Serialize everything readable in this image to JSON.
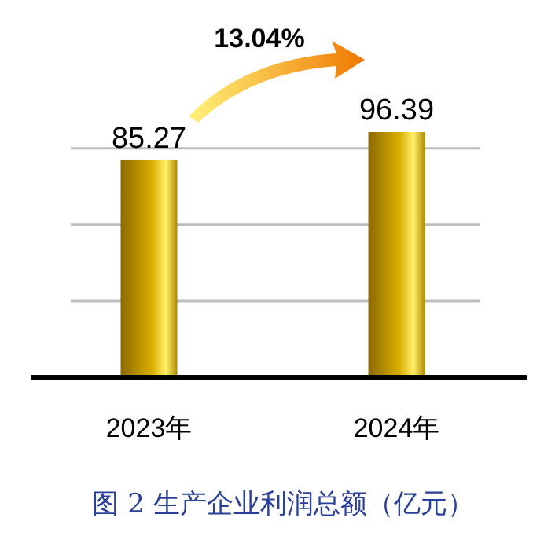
{
  "chart_data": {
    "type": "bar",
    "title": "图 2  生产企业利润总额（亿元）",
    "categories": [
      "2023年",
      "2024年"
    ],
    "values": [
      85.27,
      96.39
    ],
    "color": "#d9ae00",
    "yticks": [
      {
        "value": 0,
        "label": null
      },
      {
        "value": 30,
        "label": null
      },
      {
        "value": 60,
        "label": null
      },
      {
        "value": 90,
        "label": null
      }
    ],
    "grid": "y",
    "data_labels": true,
    "annotations": [
      "13.04%"
    ]
  }
}
